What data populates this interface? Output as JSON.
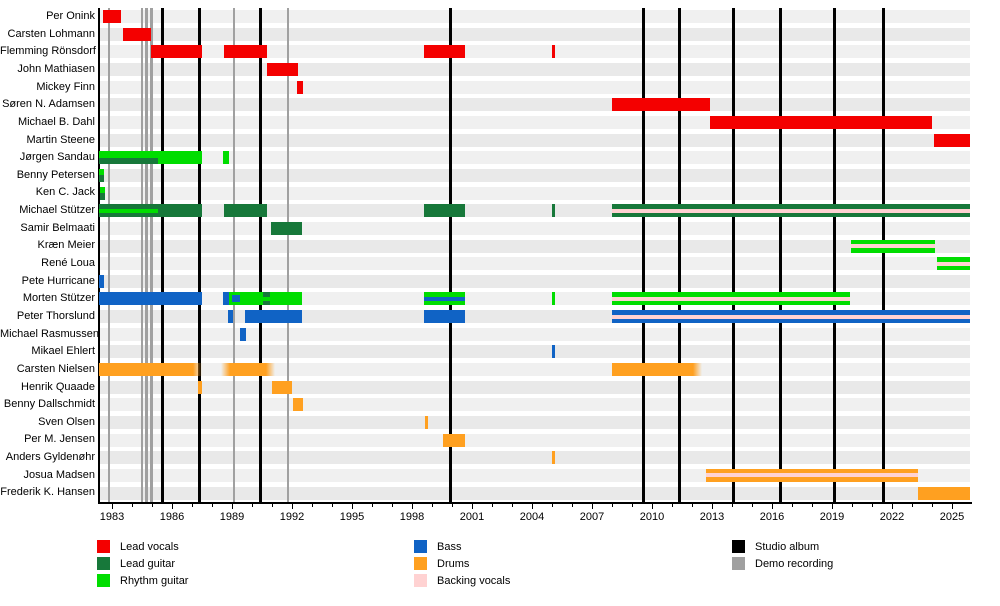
{
  "chart_data": {
    "type": "bar",
    "subtype": "band-membership-timeline-gantt",
    "x_axis": {
      "start": 1982.3,
      "end": 2025.9,
      "tick_years": [
        1983,
        1986,
        1989,
        1992,
        1995,
        1998,
        2001,
        2004,
        2007,
        2010,
        2013,
        2016,
        2019,
        2022,
        2025
      ],
      "minor_tick_step": 1,
      "grid": "vertical-event-lines"
    },
    "roles": {
      "lead_vocals": {
        "label": "Lead vocals",
        "color": "#f40000"
      },
      "lead_guitar": {
        "label": "Lead guitar",
        "color": "#17783a"
      },
      "rhythm_guitar": {
        "label": "Rhythm guitar",
        "color": "#00dd00"
      },
      "bass": {
        "label": "Bass",
        "color": "#1063c5"
      },
      "drums": {
        "label": "Drums",
        "color": "#ffa020"
      },
      "backing_vocals": {
        "label": "Backing vocals",
        "color": "#ffd2d2"
      },
      "studio_album": {
        "label": "Studio album",
        "color": "#000000"
      },
      "demo_recording": {
        "label": "Demo recording",
        "color": "#a0a0a0"
      }
    },
    "legend_columns": [
      [
        "lead_vocals",
        "lead_guitar",
        "rhythm_guitar"
      ],
      [
        "bass",
        "drums",
        "backing_vocals"
      ],
      [
        "studio_album",
        "demo_recording"
      ]
    ],
    "events": {
      "studio_albums": [
        1985.5,
        1987.35,
        1990.4,
        1999.9,
        2009.55,
        2011.35,
        2014.05,
        2016.4,
        2019.1,
        2021.55
      ],
      "demo_recordings": [
        1982.85,
        1984.5,
        1984.72,
        1984.97,
        1989.1,
        1991.8
      ]
    },
    "members": [
      {
        "name": "Per Onink",
        "bars": [
          {
            "start": 1982.55,
            "end": 1983.45,
            "role": "lead_vocals"
          }
        ]
      },
      {
        "name": "Carsten Lohmann",
        "bars": [
          {
            "start": 1983.55,
            "end": 1984.95,
            "role": "lead_vocals"
          }
        ]
      },
      {
        "name": "Flemming Rönsdorf",
        "bars": [
          {
            "start": 1984.95,
            "end": 1987.5,
            "role": "lead_vocals"
          },
          {
            "start": 1988.6,
            "end": 1990.75,
            "role": "lead_vocals"
          },
          {
            "start": 1998.6,
            "end": 2000.65,
            "role": "lead_vocals"
          },
          {
            "start": 2005.0,
            "end": 2005.15,
            "role": "lead_vocals"
          }
        ]
      },
      {
        "name": "John Mathiasen",
        "bars": [
          {
            "start": 1990.75,
            "end": 1992.3,
            "role": "lead_vocals"
          }
        ]
      },
      {
        "name": "Mickey Finn",
        "bars": [
          {
            "start": 1992.25,
            "end": 1992.55,
            "role": "lead_vocals"
          }
        ]
      },
      {
        "name": "Søren N. Adamsen",
        "bars": [
          {
            "start": 2008.0,
            "end": 2012.9,
            "role": "lead_vocals"
          }
        ]
      },
      {
        "name": "Michael B. Dahl",
        "bars": [
          {
            "start": 2012.9,
            "end": 2024.0,
            "role": "lead_vocals"
          }
        ]
      },
      {
        "name": "Martin Steene",
        "bars": [
          {
            "start": 2024.1,
            "end": 2025.9,
            "role": "lead_vocals"
          }
        ]
      },
      {
        "name": "Jørgen Sandau",
        "bars": [
          {
            "start": 1982.35,
            "end": 1985.3,
            "role": "rhythm_guitar",
            "stripe": "lead_guitar",
            "stripe_pos": "bottom"
          },
          {
            "start": 1985.3,
            "end": 1987.5,
            "role": "rhythm_guitar"
          },
          {
            "start": 1988.55,
            "end": 1988.85,
            "role": "rhythm_guitar"
          }
        ]
      },
      {
        "name": "Benny Petersen",
        "bars": [
          {
            "start": 1982.35,
            "end": 1982.6,
            "role": "rhythm_guitar",
            "stripe": "lead_guitar",
            "stripe_pos": "bottom"
          }
        ]
      },
      {
        "name": "Ken C. Jack",
        "bars": [
          {
            "start": 1982.4,
            "end": 1982.65,
            "role": "rhythm_guitar",
            "stripe": "lead_guitar",
            "stripe_pos": "bottom"
          }
        ]
      },
      {
        "name": "Michael Stützer",
        "bars": [
          {
            "start": 1982.35,
            "end": 1985.3,
            "role": "lead_guitar",
            "stripe": "rhythm_guitar"
          },
          {
            "start": 1985.3,
            "end": 1987.5,
            "role": "lead_guitar"
          },
          {
            "start": 1988.6,
            "end": 1990.75,
            "role": "lead_guitar"
          },
          {
            "start": 1998.6,
            "end": 2000.65,
            "role": "lead_guitar"
          },
          {
            "start": 2005.0,
            "end": 2005.15,
            "role": "lead_guitar"
          },
          {
            "start": 2008.0,
            "end": 2025.9,
            "role": "lead_guitar",
            "stripe": "backing_vocals"
          }
        ]
      },
      {
        "name": "Samir Belmaati",
        "bars": [
          {
            "start": 1990.95,
            "end": 1992.5,
            "role": "lead_guitar"
          }
        ]
      },
      {
        "name": "Kræn Meier",
        "bars": [
          {
            "start": 2019.95,
            "end": 2024.15,
            "role": "rhythm_guitar",
            "stripe": "backing_vocals"
          }
        ]
      },
      {
        "name": "René Loua",
        "bars": [
          {
            "start": 2024.25,
            "end": 2025.9,
            "role": "rhythm_guitar",
            "stripe": "backing_vocals"
          }
        ]
      },
      {
        "name": "Pete Hurricane",
        "bars": [
          {
            "start": 1982.35,
            "end": 1982.6,
            "role": "bass"
          }
        ]
      },
      {
        "name": "Morten Stützer",
        "bars": [
          {
            "start": 1982.35,
            "end": 1987.5,
            "role": "bass"
          },
          {
            "start": 1988.55,
            "end": 1988.85,
            "role": "bass"
          },
          {
            "start": 1988.85,
            "end": 1992.5,
            "role": "rhythm_guitar"
          },
          {
            "start": 1989.0,
            "end": 1989.4,
            "role": "bass",
            "inset": true
          },
          {
            "start": 1990.55,
            "end": 1990.9,
            "role": "lead_guitar",
            "stripe": "rhythm_guitar"
          },
          {
            "start": 1998.6,
            "end": 2000.65,
            "role": "rhythm_guitar",
            "stripe": "bass"
          },
          {
            "start": 2005.0,
            "end": 2005.15,
            "role": "rhythm_guitar"
          },
          {
            "start": 2008.0,
            "end": 2019.9,
            "role": "rhythm_guitar",
            "stripe": "backing_vocals"
          }
        ]
      },
      {
        "name": "Peter Thorslund",
        "bars": [
          {
            "start": 1988.8,
            "end": 1989.05,
            "role": "bass"
          },
          {
            "start": 1989.65,
            "end": 1992.5,
            "role": "bass"
          },
          {
            "start": 1998.6,
            "end": 2000.65,
            "role": "bass"
          },
          {
            "start": 2008.0,
            "end": 2025.9,
            "role": "bass",
            "stripe": "backing_vocals"
          }
        ]
      },
      {
        "name": "Michael Rasmussen",
        "bars": [
          {
            "start": 1989.4,
            "end": 1989.7,
            "role": "bass"
          }
        ]
      },
      {
        "name": "Mikael Ehlert",
        "bars": [
          {
            "start": 2005.0,
            "end": 2005.15,
            "role": "bass"
          }
        ]
      },
      {
        "name": "Carsten Nielsen",
        "bars": [
          {
            "start": 1982.35,
            "end": 1987.5,
            "role": "drums",
            "fade_right": true
          },
          {
            "start": 1988.45,
            "end": 1991.15,
            "role": "drums",
            "fade_left": true,
            "fade_right": true
          },
          {
            "start": 2008.0,
            "end": 2012.5,
            "role": "drums",
            "fade_right": true
          }
        ]
      },
      {
        "name": "Henrik Quaade",
        "bars": [
          {
            "start": 1987.3,
            "end": 1987.5,
            "role": "drums"
          },
          {
            "start": 1991.0,
            "end": 1992.0,
            "role": "drums"
          }
        ]
      },
      {
        "name": "Benny Dallschmidt",
        "bars": [
          {
            "start": 1992.05,
            "end": 1992.55,
            "role": "drums"
          }
        ]
      },
      {
        "name": "Sven Olsen",
        "bars": [
          {
            "start": 1998.65,
            "end": 1998.8,
            "role": "drums"
          }
        ]
      },
      {
        "name": "Per M. Jensen",
        "bars": [
          {
            "start": 1999.55,
            "end": 2000.65,
            "role": "drums"
          }
        ]
      },
      {
        "name": "Anders Gyldenøhr",
        "bars": [
          {
            "start": 2005.0,
            "end": 2005.15,
            "role": "drums"
          }
        ]
      },
      {
        "name": "Josua Madsen",
        "bars": [
          {
            "start": 2012.7,
            "end": 2023.3,
            "role": "drums",
            "stripe": "backing_vocals"
          }
        ]
      },
      {
        "name": "Frederik K. Hansen",
        "bars": [
          {
            "start": 2023.3,
            "end": 2025.9,
            "role": "drums"
          }
        ]
      }
    ]
  }
}
